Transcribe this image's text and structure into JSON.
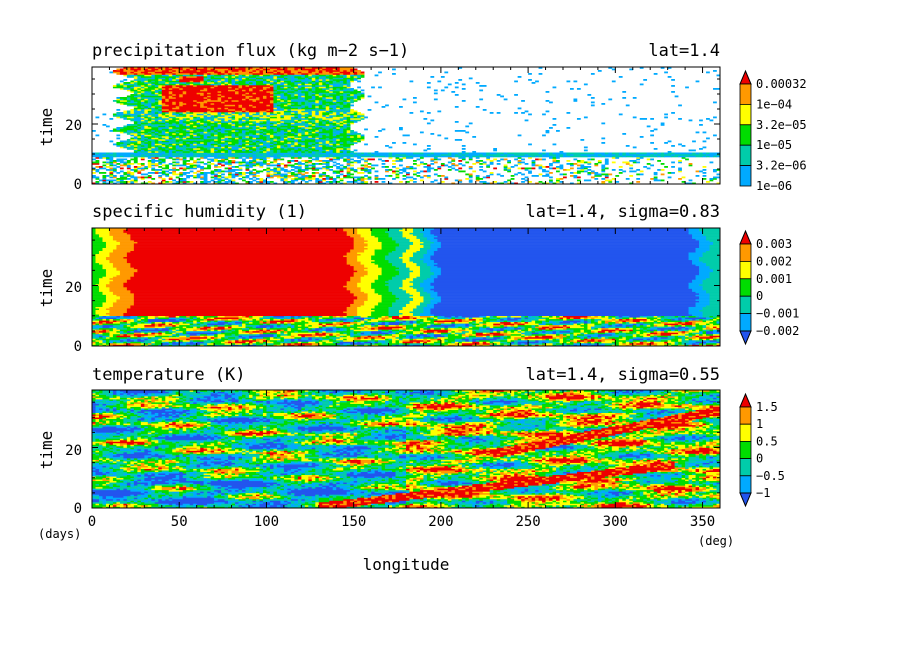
{
  "chart_data": [
    {
      "type": "heatmap",
      "title": "precipitation flux (kg m−2 s−1)",
      "subtitle": "lat=1.4",
      "ylabel": "time",
      "ylim": [
        0,
        39
      ],
      "xlim": [
        0,
        360
      ],
      "yticks": [
        "0",
        "20"
      ],
      "colorbar": {
        "labels": [
          "0.00032",
          "1e−04",
          "3.2e−05",
          "1e−05",
          "3.2e−06",
          "1e−06"
        ],
        "colors": [
          "#ee0000",
          "#ff9900",
          "#ffff00",
          "#00dd00",
          "#00ccaa",
          "#00aaff"
        ]
      },
      "regions": [
        {
          "desc": "dense rain band",
          "lon": [
            20,
            150
          ],
          "time": [
            11,
            38
          ]
        },
        {
          "desc": "heavy core",
          "lon": [
            40,
            105
          ],
          "time": [
            24,
            33
          ]
        },
        {
          "desc": "scattered rain",
          "lon": [
            0,
            360
          ],
          "time": [
            0,
            10
          ]
        }
      ]
    },
    {
      "type": "heatmap",
      "title": "specific humidity (1)",
      "subtitle": "lat=1.4, sigma=0.83",
      "ylabel": "time",
      "ylim": [
        0,
        39
      ],
      "xlim": [
        0,
        360
      ],
      "yticks": [
        "0",
        "20"
      ],
      "colorbar": {
        "labels": [
          "0.003",
          "0.002",
          "0.001",
          "0",
          "−0.001",
          "−0.002"
        ],
        "colors": [
          "#ee0000",
          "#ff9900",
          "#ffff00",
          "#00dd00",
          "#00ccaa",
          "#00aaff",
          "#2255ee"
        ]
      },
      "regions": [
        {
          "desc": "moist anomaly",
          "lon": [
            25,
            150
          ],
          "time": [
            10,
            39
          ],
          "value": 0.003
        },
        {
          "desc": "dry anomaly",
          "lon": [
            195,
            345
          ],
          "time": [
            10,
            39
          ],
          "value": -0.002
        },
        {
          "desc": "noisy spinup",
          "lon": [
            0,
            360
          ],
          "time": [
            0,
            10
          ]
        }
      ]
    },
    {
      "type": "heatmap",
      "title": "temperature (K)",
      "subtitle": "lat=1.4, sigma=0.55",
      "ylabel": "time",
      "ylim": [
        0,
        39
      ],
      "xlim": [
        0,
        360
      ],
      "yticks": [
        "0",
        "20"
      ],
      "colorbar": {
        "labels": [
          "1.5",
          "1",
          "0.5",
          "0",
          "−0.5",
          "−1"
        ],
        "colors": [
          "#ee0000",
          "#ff9900",
          "#ffff00",
          "#00dd00",
          "#00ccaa",
          "#00aaff",
          "#2255ee"
        ]
      },
      "regions": [
        {
          "desc": "eastward propagating warm streak",
          "lon": [
            120,
            330
          ],
          "time": [
            0,
            14
          ]
        },
        {
          "desc": "second warm streak",
          "lon": [
            230,
            360
          ],
          "time": [
            18,
            34
          ]
        }
      ],
      "xticks": [
        "0",
        "50",
        "100",
        "150",
        "200",
        "250",
        "300",
        "350"
      ],
      "xlabel": "longitude",
      "xunit": "(deg)",
      "yunit": "(days)"
    }
  ]
}
